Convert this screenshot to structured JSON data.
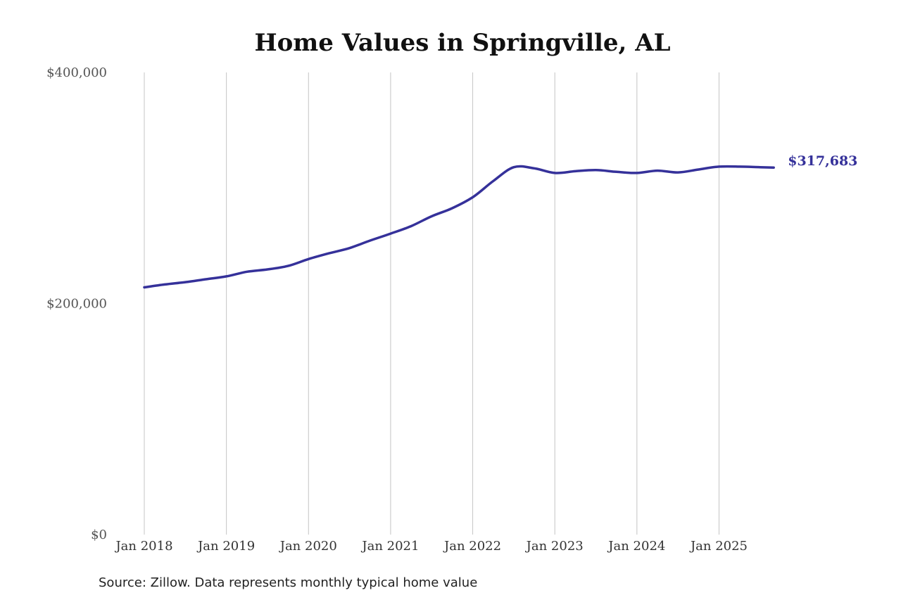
{
  "chart_data": {
    "type": "line",
    "title": "Home Values in Springville, AL",
    "source": "Source: Zillow. Data represents monthly typical home value",
    "ylim": [
      0,
      400000
    ],
    "y_ticks": [
      0,
      200000,
      400000
    ],
    "y_tick_labels": [
      "$0",
      "$200,000",
      "$400,000"
    ],
    "x_ticks": [
      "2018-01",
      "2019-01",
      "2020-01",
      "2021-01",
      "2022-01",
      "2023-01",
      "2024-01",
      "2025-01"
    ],
    "x_tick_labels": [
      "Jan 2018",
      "Jan 2019",
      "Jan 2020",
      "Jan 2021",
      "Jan 2022",
      "Jan 2023",
      "Jan 2024",
      "Jan 2025"
    ],
    "x_range": [
      "2018-01",
      "2025-09"
    ],
    "grid": "vertical",
    "line_color": "#35319a",
    "end_label": "$317,683",
    "series": [
      {
        "x": [
          "2018-01",
          "2018-04",
          "2018-07",
          "2018-10",
          "2019-01",
          "2019-04",
          "2019-07",
          "2019-10",
          "2020-01",
          "2020-04",
          "2020-07",
          "2020-10",
          "2021-01",
          "2021-04",
          "2021-07",
          "2021-10",
          "2022-01",
          "2022-04",
          "2022-07",
          "2022-10",
          "2023-01",
          "2023-04",
          "2023-07",
          "2023-10",
          "2024-01",
          "2024-04",
          "2024-07",
          "2024-10",
          "2025-01",
          "2025-04",
          "2025-07",
          "2025-09"
        ],
        "values": [
          214000,
          216500,
          218500,
          221000,
          223500,
          227500,
          229500,
          232500,
          238500,
          243500,
          248000,
          254500,
          260500,
          267000,
          275500,
          282500,
          292000,
          306000,
          318000,
          317000,
          313000,
          314500,
          315500,
          314000,
          313000,
          315000,
          313500,
          316000,
          318500,
          318500,
          318000,
          317683
        ]
      }
    ]
  }
}
